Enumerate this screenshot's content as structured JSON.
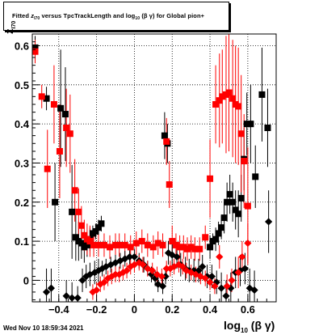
{
  "title": {
    "prefix": "Fitted",
    "var": "z",
    "var_sub": "I70",
    "middle": "versus TpcTrackLength and log",
    "log_sub": "10",
    "paren": "(β γ)",
    "suffix": "for Global pion+"
  },
  "date_stamp": "Wed Nov 10 18:59:34 2021",
  "x_title": {
    "main": "log",
    "sub": "10",
    "rest": "(β γ)"
  },
  "y_title": {
    "main": "z",
    "sub": "I70"
  },
  "chart_data": {
    "type": "scatter",
    "xlim": [
      -0.54,
      0.75
    ],
    "ylim": [
      -0.055,
      0.63
    ],
    "grid": true,
    "x_ticks": [
      -0.4,
      -0.2,
      0,
      0.2,
      0.4,
      0.6
    ],
    "x_tick_labels": [
      "−0.4",
      "−0.2",
      "0",
      "0.2",
      "0.4",
      "0.6"
    ],
    "y_ticks": [
      0,
      0.1,
      0.2,
      0.3,
      0.4,
      0.5,
      0.6
    ],
    "y_tick_labels": [
      "0",
      "0.1",
      "0.2",
      "0.3",
      "0.4",
      "0.5",
      "0.6"
    ],
    "series": [
      {
        "marker": "square",
        "color": "#000000",
        "points": [
          [
            -0.525,
            0.595,
            0.03
          ],
          [
            -0.465,
            0.465,
            0.03
          ],
          [
            -0.42,
            0.2,
            0.1
          ],
          [
            -0.39,
            0.44,
            0.15
          ],
          [
            -0.365,
            0.425,
            0.12
          ],
          [
            -0.33,
            0.175,
            0.12
          ],
          [
            -0.31,
            0.11,
            0.06
          ],
          [
            -0.295,
            0.1,
            0.05
          ],
          [
            -0.28,
            0.095,
            0.04
          ],
          [
            -0.265,
            0.085,
            0.04
          ],
          [
            -0.25,
            0.09,
            0.03
          ],
          [
            -0.235,
            0.105,
            0.03
          ],
          [
            -0.22,
            0.12,
            0.02
          ],
          [
            -0.205,
            0.125,
            0.02
          ],
          [
            -0.19,
            0.135,
            0.02
          ],
          [
            -0.175,
            0.145,
            0.02
          ],
          [
            0.16,
            0.37,
            0.06
          ],
          [
            0.175,
            0.35,
            0.05
          ],
          [
            0.4,
            0.085,
            0.03
          ],
          [
            0.415,
            0.1,
            0.02
          ],
          [
            0.43,
            0.105,
            0.03
          ],
          [
            0.445,
            0.12,
            0.03
          ],
          [
            0.46,
            0.135,
            0.03
          ],
          [
            0.475,
            0.16,
            0.04
          ],
          [
            0.49,
            0.2,
            0.05
          ],
          [
            0.505,
            0.22,
            0.05
          ],
          [
            0.52,
            0.2,
            0.05
          ],
          [
            0.535,
            0.18,
            0.05
          ],
          [
            0.55,
            0.17,
            0.06
          ],
          [
            0.565,
            0.21,
            0.06
          ],
          [
            0.58,
            0.31,
            0.08
          ],
          [
            0.595,
            0.4,
            0.08
          ],
          [
            0.615,
            0.4,
            0.1
          ],
          [
            0.64,
            0.265,
            0.08
          ],
          [
            0.675,
            0.475,
            0.12
          ],
          [
            0.705,
            0.39,
            0.1
          ]
        ]
      },
      {
        "marker": "square",
        "color": "#ff0000",
        "points": [
          [
            -0.525,
            0.585,
            0.03
          ],
          [
            -0.49,
            0.47,
            0.03
          ],
          [
            -0.46,
            0.285,
            0.1
          ],
          [
            -0.425,
            0.45,
            0.1
          ],
          [
            -0.395,
            0.33,
            0.12
          ],
          [
            -0.36,
            0.39,
            0.1
          ],
          [
            -0.34,
            0.375,
            0.1
          ],
          [
            -0.315,
            0.23,
            0.08
          ],
          [
            -0.295,
            0.175,
            0.06
          ],
          [
            -0.28,
            0.14,
            0.05
          ],
          [
            -0.265,
            0.115,
            0.04
          ],
          [
            -0.25,
            0.105,
            0.04
          ],
          [
            -0.235,
            0.1,
            0.04
          ],
          [
            -0.215,
            0.09,
            0.03
          ],
          [
            -0.19,
            0.09,
            0.03
          ],
          [
            -0.16,
            0.09,
            0.03
          ],
          [
            -0.13,
            0.085,
            0.03
          ],
          [
            -0.1,
            0.09,
            0.03
          ],
          [
            -0.08,
            0.09,
            0.03
          ],
          [
            -0.05,
            0.09,
            0.03
          ],
          [
            -0.02,
            0.085,
            0.03
          ],
          [
            0.01,
            0.095,
            0.03
          ],
          [
            0.04,
            0.1,
            0.03
          ],
          [
            0.07,
            0.09,
            0.03
          ],
          [
            0.1,
            0.085,
            0.03
          ],
          [
            0.125,
            0.095,
            0.03
          ],
          [
            0.15,
            0.09,
            0.03
          ],
          [
            0.17,
            0.355,
            0.06
          ],
          [
            0.185,
            0.245,
            0.06
          ],
          [
            0.2,
            0.1,
            0.04
          ],
          [
            0.22,
            0.09,
            0.03
          ],
          [
            0.24,
            0.085,
            0.03
          ],
          [
            0.26,
            0.085,
            0.03
          ],
          [
            0.28,
            0.08,
            0.03
          ],
          [
            0.3,
            0.085,
            0.03
          ],
          [
            0.32,
            0.08,
            0.03
          ],
          [
            0.345,
            0.08,
            0.03
          ],
          [
            0.375,
            0.11,
            0.03
          ],
          [
            0.4,
            0.26,
            0.1
          ],
          [
            0.43,
            0.45,
            0.1
          ],
          [
            0.45,
            0.46,
            0.12
          ],
          [
            0.465,
            0.47,
            0.12
          ],
          [
            0.485,
            0.475,
            0.15
          ],
          [
            0.5,
            0.48,
            0.15
          ],
          [
            0.52,
            0.465,
            0.15
          ],
          [
            0.535,
            0.45,
            0.15
          ],
          [
            0.55,
            0.445,
            0.15
          ],
          [
            0.565,
            0.375,
            0.15
          ],
          [
            0.58,
            0.305,
            0.12
          ],
          [
            0.6,
            0.19,
            0.15
          ]
        ]
      },
      {
        "marker": "diamond",
        "color": "#000000",
        "points": [
          [
            -0.465,
            -0.03,
            0.06
          ],
          [
            -0.44,
            -0.02,
            0.05
          ],
          [
            -0.36,
            -0.04,
            0.04
          ],
          [
            -0.33,
            -0.045,
            0.04
          ],
          [
            -0.3,
            -0.045,
            0.03
          ],
          [
            -0.275,
            0.0,
            0.03
          ],
          [
            -0.255,
            0.01,
            0.03
          ],
          [
            -0.235,
            0.015,
            0.03
          ],
          [
            -0.21,
            0.02,
            0.03
          ],
          [
            -0.19,
            0.025,
            0.03
          ],
          [
            -0.17,
            0.03,
            0.02
          ],
          [
            -0.15,
            0.035,
            0.02
          ],
          [
            -0.125,
            0.04,
            0.02
          ],
          [
            -0.1,
            0.045,
            0.02
          ],
          [
            -0.075,
            0.05,
            0.02
          ],
          [
            -0.05,
            0.055,
            0.02
          ],
          [
            -0.025,
            0.06,
            0.02
          ],
          [
            0.0,
            0.06,
            0.02
          ],
          [
            0.025,
            0.05,
            0.02
          ],
          [
            0.05,
            0.04,
            0.02
          ],
          [
            0.07,
            0.03,
            0.02
          ],
          [
            0.09,
            0.015,
            0.02
          ],
          [
            0.11,
            0.005,
            0.02
          ],
          [
            0.125,
            -0.01,
            0.02
          ],
          [
            0.15,
            -0.015,
            0.02
          ],
          [
            0.165,
            0.01,
            0.02
          ],
          [
            0.18,
            0.07,
            0.03
          ],
          [
            0.2,
            0.065,
            0.03
          ],
          [
            0.225,
            0.06,
            0.03
          ],
          [
            0.245,
            0.04,
            0.03
          ],
          [
            0.27,
            0.03,
            0.03
          ],
          [
            0.29,
            0.025,
            0.03
          ],
          [
            0.315,
            0.025,
            0.03
          ],
          [
            0.34,
            0.025,
            0.03
          ],
          [
            0.36,
            0.035,
            0.03
          ],
          [
            0.385,
            0.01,
            0.03
          ],
          [
            0.41,
            0.01,
            0.03
          ],
          [
            0.435,
            -0.005,
            0.03
          ],
          [
            0.46,
            -0.02,
            0.04
          ],
          [
            0.485,
            -0.04,
            0.04
          ],
          [
            0.51,
            -0.02,
            0.04
          ],
          [
            0.535,
            0.02,
            0.04
          ],
          [
            0.56,
            0.025,
            0.04
          ],
          [
            0.585,
            0.03,
            0.04
          ],
          [
            0.61,
            -0.02,
            0.05
          ],
          [
            0.635,
            -0.025,
            0.05
          ],
          [
            0.71,
            0.15,
            0.08
          ]
        ]
      },
      {
        "marker": "diamond",
        "color": "#ff0000",
        "points": [
          [
            -0.22,
            -0.03,
            0.02
          ],
          [
            -0.2,
            -0.025,
            0.02
          ],
          [
            -0.18,
            -0.01,
            0.02
          ],
          [
            -0.16,
            -0.005,
            0.02
          ],
          [
            -0.14,
            0.005,
            0.02
          ],
          [
            -0.12,
            0.01,
            0.02
          ],
          [
            -0.1,
            0.015,
            0.02
          ],
          [
            -0.08,
            0.015,
            0.02
          ],
          [
            -0.06,
            0.02,
            0.02
          ],
          [
            -0.04,
            0.025,
            0.02
          ],
          [
            -0.02,
            0.035,
            0.02
          ],
          [
            0.0,
            0.04,
            0.02
          ],
          [
            0.025,
            0.045,
            0.02
          ],
          [
            0.045,
            0.04,
            0.02
          ],
          [
            0.07,
            0.03,
            0.02
          ],
          [
            0.095,
            0.025,
            0.02
          ],
          [
            0.12,
            0.015,
            0.02
          ],
          [
            0.145,
            0.01,
            0.02
          ],
          [
            0.17,
            0.03,
            0.02
          ],
          [
            0.19,
            0.03,
            0.02
          ],
          [
            0.21,
            0.035,
            0.02
          ],
          [
            0.235,
            0.04,
            0.02
          ],
          [
            0.255,
            0.035,
            0.02
          ],
          [
            0.275,
            0.025,
            0.02
          ],
          [
            0.3,
            0.02,
            0.02
          ],
          [
            0.325,
            0.015,
            0.02
          ],
          [
            0.35,
            0.01,
            0.02
          ],
          [
            0.375,
            0.005,
            0.02
          ],
          [
            0.4,
            -0.005,
            0.02
          ],
          [
            0.425,
            -0.015,
            0.02
          ],
          [
            0.45,
            0.06,
            0.03
          ],
          [
            0.49,
            -0.015,
            0.03
          ],
          [
            0.515,
            0.0,
            0.03
          ],
          [
            0.55,
            0.02,
            0.04
          ],
          [
            0.57,
            0.06,
            0.04
          ],
          [
            0.6,
            0.095,
            0.05
          ]
        ]
      }
    ]
  }
}
